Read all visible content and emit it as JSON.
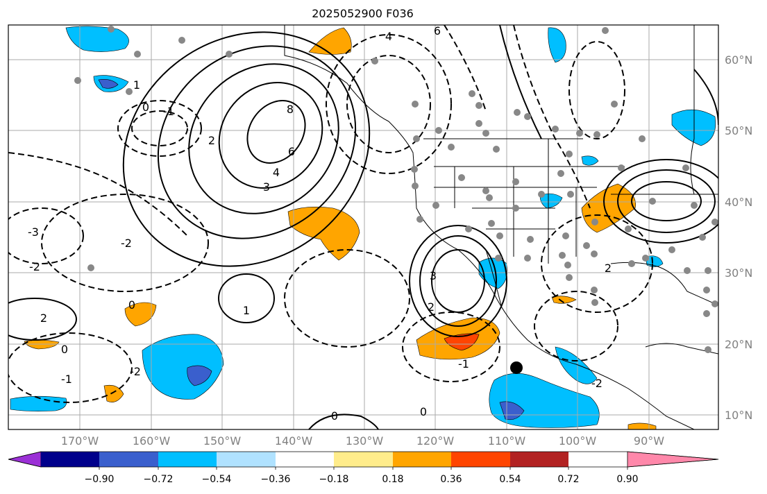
{
  "title": "2025052900 F036",
  "lat_labels": [
    "60°N",
    "50°N",
    "40°N",
    "30°N",
    "20°N",
    "10°N"
  ],
  "lon_labels": [
    "170°W",
    "160°W",
    "150°W",
    "140°W",
    "130°W",
    "120°W",
    "110°W",
    "100°W",
    "90°W"
  ],
  "colorbar": {
    "colors": [
      "#9b30d6",
      "#00008b",
      "#3a5fcd",
      "#00bfff",
      "#b0e2ff",
      "#ffffff",
      "#ffec8b",
      "#ffa500",
      "#ff4500",
      "#b22222",
      "#ff88aa"
    ],
    "labels": [
      "−0.90",
      "−0.72",
      "−0.54",
      "−0.36",
      "−0.18",
      "0.18",
      "0.36",
      "0.54",
      "0.72",
      "0.90"
    ]
  },
  "contour_labels": [
    {
      "text": "8"
    },
    {
      "text": "6"
    },
    {
      "text": "4"
    },
    {
      "text": "3"
    },
    {
      "text": "2"
    },
    {
      "text": "1"
    },
    {
      "text": "0"
    },
    {
      "text": "-1"
    },
    {
      "text": "-2"
    },
    {
      "text": "-3"
    },
    {
      "text": "3"
    },
    {
      "text": "2"
    },
    {
      "text": "-2"
    },
    {
      "text": "0"
    },
    {
      "text": "1"
    },
    {
      "text": "-1"
    },
    {
      "text": "0"
    },
    {
      "text": "6"
    },
    {
      "text": "4"
    },
    {
      "text": "-2"
    },
    {
      "text": "2"
    },
    {
      "text": "0"
    },
    {
      "text": "-1"
    },
    {
      "text": "-2"
    },
    {
      "text": "2"
    },
    {
      "text": "0"
    }
  ]
}
